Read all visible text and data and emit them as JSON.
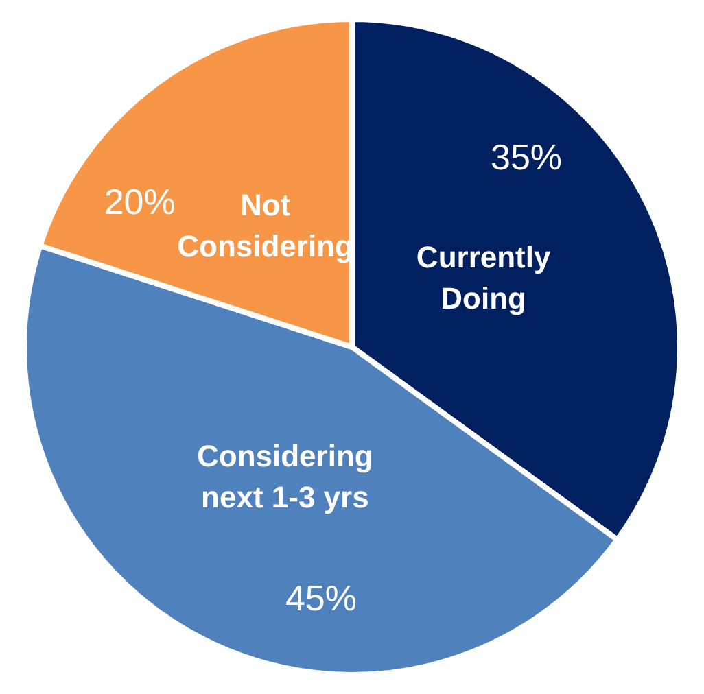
{
  "chart_data": {
    "type": "pie",
    "categories": [
      "Currently Doing",
      "Considering next 1-3 yrs",
      "Not Considering"
    ],
    "values": [
      35,
      45,
      20
    ],
    "colors": [
      "#002060",
      "#4f81bd",
      "#f79646"
    ],
    "value_labels": [
      "35%",
      "45%",
      "20%"
    ],
    "legend": false
  }
}
